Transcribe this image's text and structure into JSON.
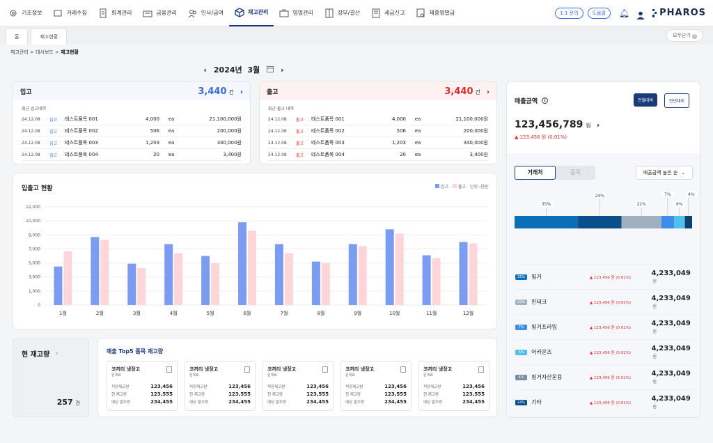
{
  "nav": {
    "items": [
      {
        "label": "기초정보",
        "icon": "gear-icon"
      },
      {
        "label": "거래수집",
        "icon": "box-icon"
      },
      {
        "label": "회계관리",
        "icon": "document-icon"
      },
      {
        "label": "금융관리",
        "icon": "bank-icon"
      },
      {
        "label": "인사/급여",
        "icon": "people-icon"
      },
      {
        "label": "재고관리",
        "icon": "cube-icon"
      },
      {
        "label": "영업관리",
        "icon": "briefcase-icon"
      },
      {
        "label": "장부/결산",
        "icon": "ledger-icon"
      },
      {
        "label": "세금신고",
        "icon": "form-icon"
      },
      {
        "label": "제증명발급",
        "icon": "certificate-icon"
      }
    ],
    "active": "재고관리",
    "inquiry": "1:1 문의",
    "help": "도움말",
    "logo": "PHAROS"
  },
  "tabs": {
    "home": "홈",
    "current": "재고현황",
    "close_all": "모두닫기"
  },
  "breadcrumb": {
    "path": "재고관리 > 대시보드 > ",
    "current": "재고현황"
  },
  "month": {
    "year": "2024년",
    "month": "3월"
  },
  "inbound": {
    "title": "입고",
    "count": "3,440",
    "unit": "건",
    "sub": "최근 입고내역",
    "color": "#3a6fd8",
    "rows": [
      {
        "date": "24.12.08",
        "type": "입고",
        "name": "테스트품목 001",
        "qty": "4,000",
        "unit": "ea",
        "amount": "21,100,000원"
      },
      {
        "date": "24.12.08",
        "type": "입고",
        "name": "테스트품목 002",
        "qty": "506",
        "unit": "ea",
        "amount": "200,000원"
      },
      {
        "date": "24.12.08",
        "type": "입고",
        "name": "테스트품목 003",
        "qty": "1,203",
        "unit": "ea",
        "amount": "340,000원"
      },
      {
        "date": "24.12.08",
        "type": "입고",
        "name": "테스트품목 004",
        "qty": "20",
        "unit": "ea",
        "amount": "3,400원"
      }
    ]
  },
  "outbound": {
    "title": "출고",
    "count": "3,440",
    "unit": "건",
    "sub": "최근 출고 내역",
    "color": "#e02b2b",
    "rows": [
      {
        "date": "24.12.08",
        "type": "출고",
        "name": "테스트품목 001",
        "qty": "4,000",
        "unit": "ea",
        "amount": "21,100,000원"
      },
      {
        "date": "24.12.08",
        "type": "출고",
        "name": "테스트품목 002",
        "qty": "506",
        "unit": "ea",
        "amount": "200,000원"
      },
      {
        "date": "24.12.08",
        "type": "출고",
        "name": "테스트품목 003",
        "qty": "1,203",
        "unit": "ea",
        "amount": "340,000원"
      },
      {
        "date": "24.12.08",
        "type": "출고",
        "name": "테스트품목 004",
        "qty": "20",
        "unit": "ea",
        "amount": "3,400원"
      }
    ]
  },
  "chart_data": {
    "type": "bar",
    "title": "입출고 현황",
    "unit_label": "단위 :천원",
    "categories": [
      "1월",
      "2월",
      "3월",
      "4월",
      "5월",
      "6월",
      "7월",
      "8월",
      "9월",
      "10월",
      "11월",
      "12월"
    ],
    "series": [
      {
        "name": "입고",
        "color": "#7b9cf0",
        "values": [
          4500,
          8700,
          4900,
          7700,
          6000,
          9900,
          7700,
          5200,
          7700,
          9400,
          6100,
          8000
        ]
      },
      {
        "name": "출고",
        "color": "#fcd6d8",
        "values": [
          6700,
          8300,
          4300,
          6400,
          5000,
          9300,
          6400,
          5000,
          7400,
          9100,
          5700,
          7800
        ]
      }
    ],
    "ylim": [
      0,
      12000
    ],
    "yticks": [
      "12,000",
      "10,000",
      "9,000",
      "7,000",
      "5,000",
      "3,000",
      "1,000",
      "0"
    ],
    "grid": true,
    "legend": "top-right"
  },
  "stock": {
    "title": "현 재고량",
    "value": "257",
    "unit": "건"
  },
  "top5": {
    "title": "매출 Top5 품목 재고량",
    "items": [
      {
        "name": "코끼리 냉장고",
        "spec": "원재료",
        "k1": "적정재고량",
        "v1": "123,456",
        "k2": "현 재고량",
        "v2": "123,555",
        "k3": "예상 발주량",
        "v3": "234,455"
      },
      {
        "name": "코끼리 냉장고",
        "spec": "원재료",
        "k1": "적정재고량",
        "v1": "123,456",
        "k2": "현 재고량",
        "v2": "123,555",
        "k3": "예상 발주량",
        "v3": "234,455"
      },
      {
        "name": "코끼리 냉장고",
        "spec": "원재료",
        "k1": "적정재고량",
        "v1": "123,456",
        "k2": "현 재고량",
        "v2": "123,555",
        "k3": "예상 발주량",
        "v3": "234,455"
      },
      {
        "name": "코끼리 냉장고",
        "spec": "원재료",
        "k1": "적정재고량",
        "v1": "123,456",
        "k2": "현 재고량",
        "v2": "123,555",
        "k3": "예상 발주량",
        "v3": "234,455"
      },
      {
        "name": "코끼리 냉장고",
        "spec": "원재료",
        "k1": "적정재고량",
        "v1": "123,456",
        "k2": "현 재고량",
        "v2": "123,555",
        "k3": "예상 발주량",
        "v3": "234,455"
      }
    ]
  },
  "sales": {
    "title": "매출금액",
    "btn_month": "전월대비",
    "btn_year": "전년대비",
    "amount": "123,456,789",
    "unit": "원",
    "change": "▲ 123,456 원 (0.01%)",
    "tab_client": "거래처",
    "tab_item": "품목",
    "sort": "매출금액 높은 순",
    "share": [
      {
        "pct": "35%",
        "color": "#0b6fb8",
        "value": 35
      },
      {
        "pct": "24%",
        "color": "#0a4f8a",
        "value": 24
      },
      {
        "pct": "22%",
        "color": "#9fb0c0",
        "value": 22
      },
      {
        "pct": "7%",
        "color": "#3d8ee8",
        "value": 7
      },
      {
        "pct": "6%",
        "color": "#4fc0e8",
        "value": 6
      },
      {
        "pct": "4%",
        "color": "#0f3f73",
        "value": 4
      }
    ],
    "rows": [
      {
        "badge": "35%",
        "name": "핑거",
        "change": "▲ 123,456 원 (0.01%)",
        "value": "4,233,049",
        "unit": "원",
        "color": "#0b6fb8"
      },
      {
        "badge": "22%",
        "name": "핀테크",
        "change": "▲ 123,456 원 (0.01%)",
        "value": "4,233,049",
        "unit": "원",
        "color": "#9fb0c0"
      },
      {
        "badge": "7%",
        "name": "핑거프라임",
        "change": "▲ 123,456 원 (0.01%)",
        "value": "4,233,049",
        "unit": "원",
        "color": "#3d8ee8"
      },
      {
        "badge": "6%",
        "name": "어카운즈",
        "change": "▲ 123,456 원 (0.01%)",
        "value": "4,233,049",
        "unit": "원",
        "color": "#4fc0e8"
      },
      {
        "badge": "4%",
        "name": "핑거자산운용",
        "change": "▲ 123,456 원 (0.01%)",
        "value": "4,233,049",
        "unit": "원",
        "color": "#7a8ea3"
      },
      {
        "badge": "24%",
        "name": "기타",
        "change": "▲ 123,456 원 (0.01%)",
        "value": "4,233,049",
        "unit": "원",
        "color": "#0a4f8a"
      }
    ]
  }
}
